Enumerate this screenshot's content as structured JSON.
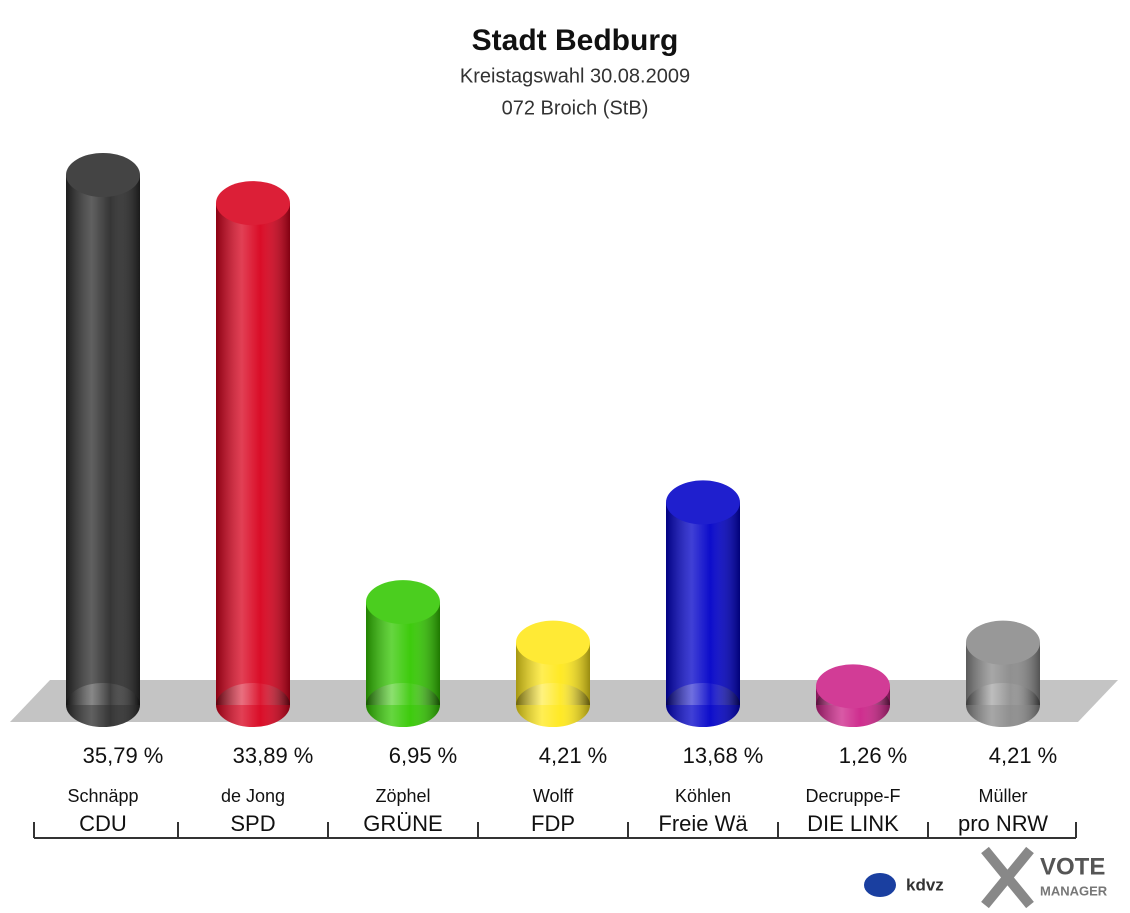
{
  "chart_data": {
    "type": "bar",
    "title": "Stadt Bedburg",
    "subtitles": [
      "Kreistagswahl 30.08.2009",
      "072 Broich (StB)"
    ],
    "categories": [
      "CDU",
      "SPD",
      "GRÜNE",
      "FDP",
      "Freie Wä",
      "DIE LINK",
      "pro NRW"
    ],
    "candidates": [
      "Schnäpp",
      "de Jong",
      "Zöphel",
      "Wolff",
      "Köhlen",
      "Decruppe-F",
      "Müller"
    ],
    "values": [
      35.79,
      33.89,
      6.95,
      4.21,
      13.68,
      1.26,
      4.21
    ],
    "value_labels": [
      "35,79 %",
      "33,89 %",
      "6,95 %",
      "4,21 %",
      "13,68 %",
      "1,26 %",
      "4,21 %"
    ],
    "colors": [
      "#2b2b2b",
      "#d8001c",
      "#33c800",
      "#ffe81a",
      "#0000c8",
      "#cc2288",
      "#8a8a8a"
    ]
  },
  "logo": {
    "left": "kdvz",
    "vote": "VOTE",
    "manager": "MANAGER"
  }
}
